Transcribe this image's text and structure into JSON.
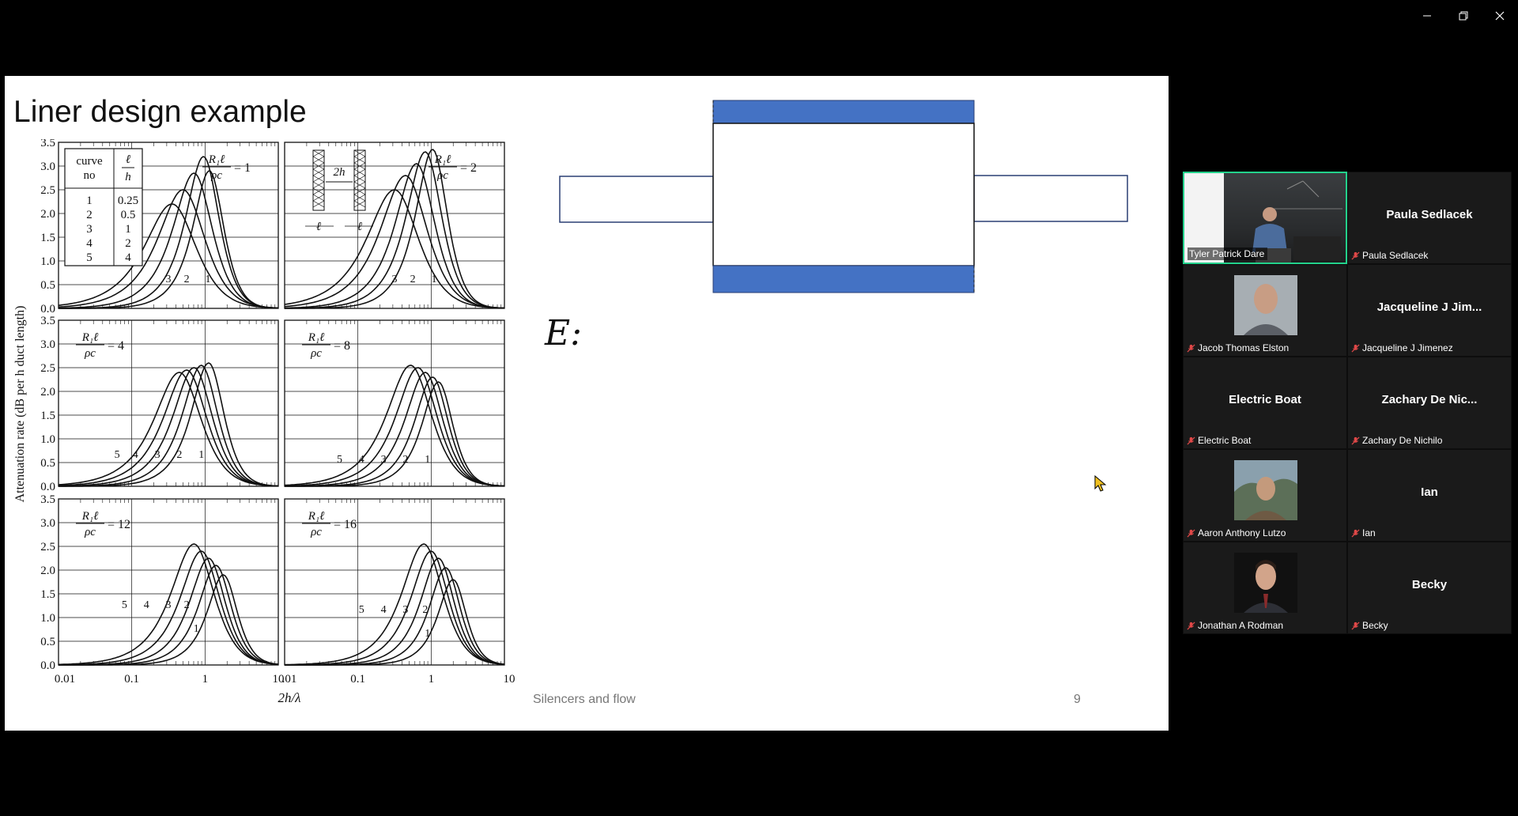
{
  "window": {
    "controls": [
      "minimize",
      "restore",
      "close"
    ]
  },
  "slide": {
    "title": "Liner design example",
    "footer": "Silencers and flow",
    "page_number": "9",
    "handwriting": "E:",
    "figure": {
      "ylabel": "Attenuation rate (dB per h duct length)",
      "xlabel": "2h/λ",
      "y_ticks": [
        "3.5",
        "3.0",
        "2.5",
        "2.0",
        "1.5",
        "1.0",
        "0.5",
        "0.0"
      ],
      "x_ticks_left": [
        "0.01",
        "0.1",
        "1",
        "10"
      ],
      "x_ticks_right": [
        ".01",
        "0.1",
        "1",
        "10"
      ],
      "table": {
        "header_curve": "curve",
        "header_no": "no",
        "header_ratio_top": "ℓ",
        "header_ratio_bottom": "h",
        "curves": [
          "1",
          "2",
          "3",
          "4",
          "5"
        ],
        "ratios": [
          "0.25",
          "0.5",
          "1",
          "2",
          "4"
        ]
      },
      "panel_params": [
        "= 1",
        "= 2",
        "= 4",
        "= 8",
        "= 12",
        "= 16"
      ],
      "param_num": "R₁ℓ",
      "param_den": "ρc",
      "inset_dim": "2h",
      "inset_l": "ℓ",
      "curve_labels": [
        "1",
        "2",
        "3",
        "4",
        "5"
      ]
    }
  },
  "colors": {
    "duct_liner": "#4472c4",
    "active_speaker": "#23d18b"
  },
  "participants": [
    {
      "name": "Tyler Patrick Dare",
      "video": true,
      "active": true
    },
    {
      "name": "Paula Sedlacek",
      "display": "Paula Sedlacek"
    },
    {
      "name": "Jacob Thomas Elston",
      "avatar": true
    },
    {
      "name": "Jacqueline J Jimenez",
      "display": "Jacqueline J Jim..."
    },
    {
      "name": "Electric Boat",
      "display": "Electric Boat"
    },
    {
      "name": "Zachary De Nichilo",
      "display": "Zachary De Nic..."
    },
    {
      "name": "Aaron Anthony Lutzo",
      "avatar": true
    },
    {
      "name": "Ian",
      "display": "Ian"
    },
    {
      "name": "Jonathan A Rodman",
      "avatar": true
    },
    {
      "name": "Becky",
      "display": "Becky"
    }
  ]
}
